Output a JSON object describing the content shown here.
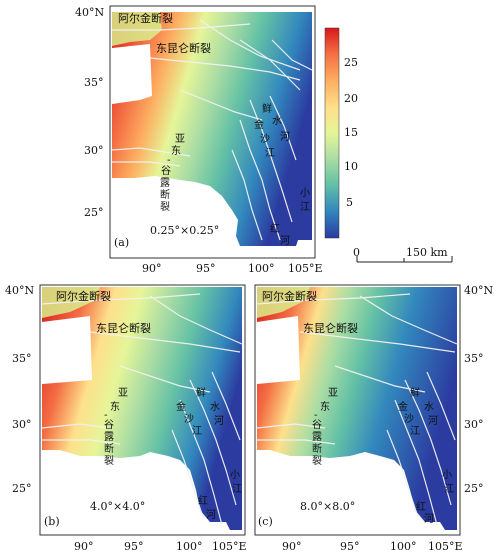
{
  "colorbar": {
    "ticks": [
      "25",
      "20",
      "15",
      "10",
      "5"
    ],
    "stops": [
      "#d7191c",
      "#f46d43",
      "#fdae61",
      "#fee08b",
      "#e6f598",
      "#abdda4",
      "#66c2a5",
      "#3288bd",
      "#2b3ba0"
    ]
  },
  "scalebar": {
    "zero": "0",
    "label": "150 km"
  },
  "panels": [
    {
      "id": "a",
      "panel_label": "(a)",
      "resolution": "0.25°×0.25°",
      "lat_ticks": [
        "40°N",
        "35°",
        "30°",
        "25°"
      ],
      "lon_ticks": [
        "90°",
        "95°",
        "100°",
        "105°E"
      ],
      "faults": {
        "altyn": "阿尔金断裂",
        "kunlun": "东昆仑断裂",
        "yadong": [
          "亚",
          "东",
          "-",
          "谷",
          "露",
          "断",
          "裂"
        ],
        "xianshuihe": [
          "鲜",
          "水",
          "河"
        ],
        "jinsha": [
          "金",
          "沙",
          "江"
        ],
        "xiaojiang": [
          "小",
          "江"
        ],
        "honghe": [
          "红",
          "河"
        ]
      }
    },
    {
      "id": "b",
      "panel_label": "(b)",
      "resolution": "4.0°×4.0°",
      "lat_ticks": [
        "40°N",
        "35°",
        "30°",
        "25°"
      ],
      "lon_ticks": [
        "90°",
        "95°",
        "100°",
        "105°E"
      ],
      "faults": {
        "altyn": "阿尔金断裂",
        "kunlun": "东昆仑断裂",
        "yadong": [
          "亚",
          "东",
          "-",
          "谷",
          "露",
          "断",
          "裂"
        ],
        "xianshuihe": [
          "鲜",
          "水",
          "河"
        ],
        "jinsha": [
          "金",
          "沙",
          "江"
        ],
        "xiaojiang": [
          "小",
          "江"
        ],
        "honghe": [
          "红",
          "河"
        ]
      }
    },
    {
      "id": "c",
      "panel_label": "(c)",
      "resolution": "8.0°×8.0°",
      "lat_ticks": [
        "40°N",
        "35°",
        "30°",
        "25°"
      ],
      "lon_ticks": [
        "90°",
        "95°",
        "100°",
        "105°E"
      ],
      "faults": {
        "altyn": "阿尔金断裂",
        "kunlun": "东昆仑断裂",
        "yadong": [
          "亚",
          "东",
          "-",
          "谷",
          "露",
          "断",
          "裂"
        ],
        "xianshuihe": [
          "鲜",
          "水",
          "河"
        ],
        "jinsha": [
          "金",
          "沙",
          "江"
        ],
        "xiaojiang": [
          "小",
          "江"
        ],
        "honghe": [
          "红",
          "河"
        ]
      }
    }
  ]
}
